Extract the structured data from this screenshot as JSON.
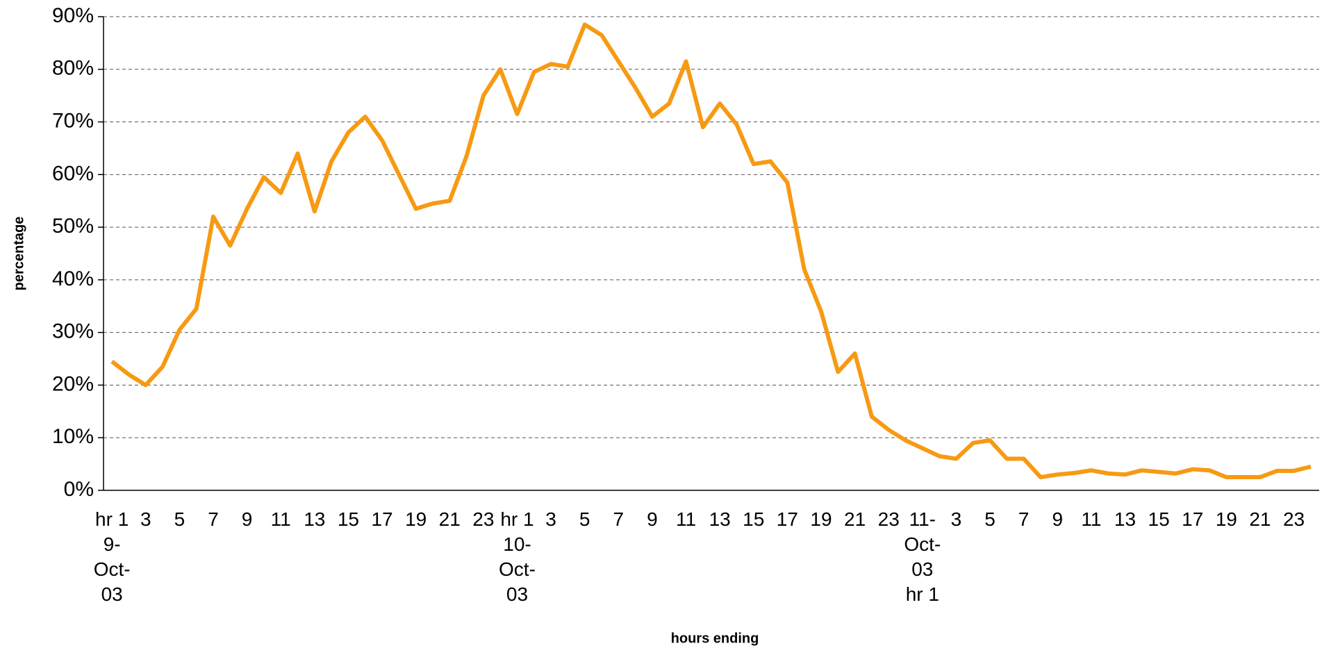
{
  "chart_data": {
    "type": "line",
    "y_label": "percentage",
    "x_label": "hours ending",
    "categories": [
      "hr 1 9-Oct-03",
      null,
      "3",
      null,
      "5",
      null,
      "7",
      null,
      "9",
      null,
      "11",
      null,
      "13",
      null,
      "15",
      null,
      "17",
      null,
      "19",
      null,
      "21",
      null,
      "23",
      null,
      "hr 1 10-Oct-03",
      null,
      "3",
      null,
      "5",
      null,
      "7",
      null,
      "9",
      null,
      "11",
      null,
      "13",
      null,
      "15",
      null,
      "17",
      null,
      "19",
      null,
      "21",
      null,
      "23",
      null,
      "11-Oct-03 hr 1",
      null,
      "3",
      null,
      "5",
      null,
      "7",
      null,
      "9",
      null,
      "11",
      null,
      "13",
      null,
      "15",
      null,
      "17",
      null,
      "19",
      null,
      "21",
      null,
      "23",
      null
    ],
    "values": [
      24.5,
      22,
      20,
      23.5,
      30.5,
      34.5,
      52,
      46.5,
      53.5,
      59.5,
      56.5,
      64,
      53,
      62.5,
      68,
      71,
      66.5,
      60,
      53.5,
      54.5,
      55,
      63.5,
      75,
      80,
      71.5,
      79.5,
      81,
      80.5,
      88.5,
      86.5,
      81.5,
      76.5,
      71,
      73.5,
      81.5,
      69,
      73.5,
      69.5,
      62,
      62.5,
      58.5,
      42,
      34,
      22.5,
      26,
      14,
      11.5,
      9.5,
      8,
      6.5,
      6,
      9,
      9.5,
      6,
      6,
      2.5,
      3,
      3.3,
      3.8,
      3.2,
      3,
      3.8,
      3.5,
      3.2,
      4,
      3.8,
      2.5,
      2.5,
      2.5,
      3.7,
      3.7,
      4.5
    ],
    "color": "#f79a13",
    "ylim": [
      0,
      90
    ],
    "yticks": [
      {
        "value": 0,
        "label": "0%"
      },
      {
        "value": 10,
        "label": "10%"
      },
      {
        "value": 20,
        "label": "20%"
      },
      {
        "value": 30,
        "label": "30%"
      },
      {
        "value": 40,
        "label": "40%"
      },
      {
        "value": 50,
        "label": "50%"
      },
      {
        "value": 60,
        "label": "60%"
      },
      {
        "value": 70,
        "label": "70%"
      },
      {
        "value": 80,
        "label": "80%"
      },
      {
        "value": 90,
        "label": "90%"
      }
    ],
    "grid": true
  }
}
